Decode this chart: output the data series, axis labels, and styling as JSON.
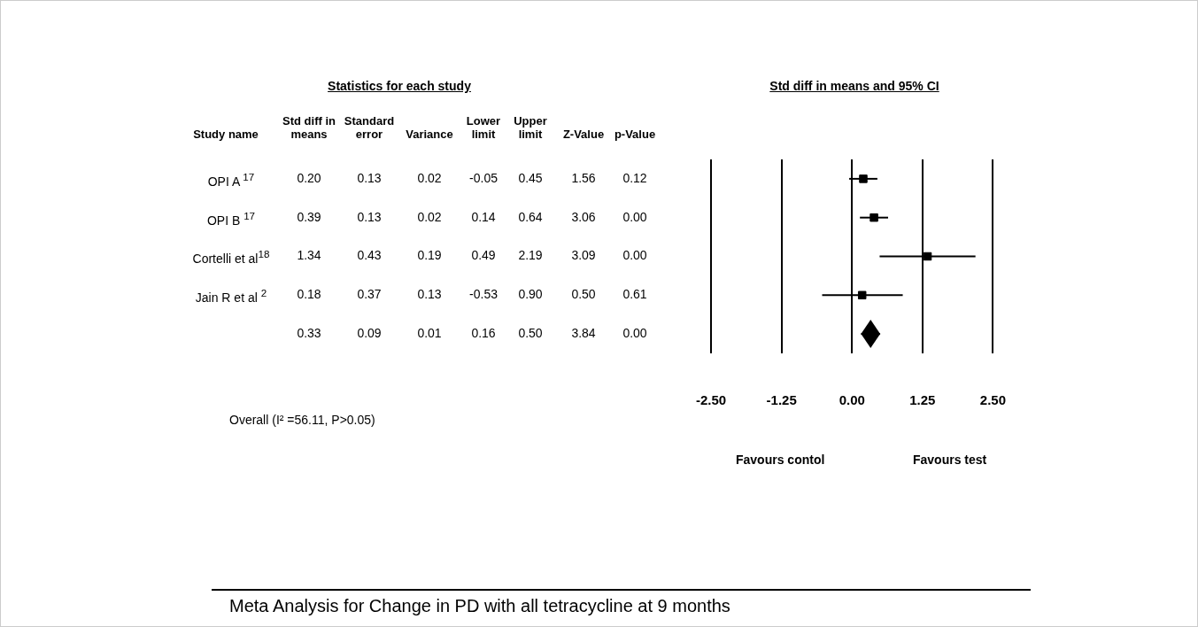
{
  "chart_data": [
    {
      "type": "heatmap",
      "title": "Statistics for each study",
      "ylabel": "Study name",
      "categories": [
        "Std diff in means",
        "Standard error",
        "Variance",
        "Lower limit",
        "Upper limit",
        "Z-Value",
        "p-Value"
      ],
      "y_categories": [
        "OPI A $^{17}$",
        "OPI B $^{17}$",
        "Cortelli et al$^{18}$",
        "Jain R et al $^{2}$",
        null
      ],
      "cells": [
        [
          0.2,
          0.13,
          0.02,
          -0.05,
          0.45,
          1.56,
          0.12
        ],
        [
          0.39,
          0.13,
          0.02,
          0.14,
          0.64,
          3.06,
          0.0
        ],
        [
          1.34,
          0.43,
          0.19,
          0.49,
          2.19,
          3.09,
          0.0
        ],
        [
          0.18,
          0.37,
          0.13,
          -0.53,
          0.9,
          0.5,
          0.61
        ],
        [
          0.33,
          0.09,
          0.01,
          0.16,
          0.5,
          3.84,
          0.0
        ]
      ],
      "cell_labels": [
        [
          "0.20",
          "0.13",
          "0.02",
          "-0.05",
          "0.45",
          "1.56",
          "0.12"
        ],
        [
          "0.39",
          "0.13",
          "0.02",
          "0.14",
          "0.64",
          "3.06",
          "0.00"
        ],
        [
          "1.34",
          "0.43",
          "0.19",
          "0.49",
          "2.19",
          "3.09",
          "0.00"
        ],
        [
          "0.18",
          "0.37",
          "0.13",
          "-0.53",
          "0.90",
          "0.50",
          "0.61"
        ],
        [
          "0.33",
          "0.09",
          "0.01",
          "0.16",
          "0.50",
          "3.84",
          "0.00"
        ]
      ],
      "annotations": [
        "Overall (I² =56.11, P>0.05)",
        "Meta Analysis for Change in PD with all tetracycline at 9 months"
      ]
    },
    {
      "type": "scatter",
      "orientation": "horizontal",
      "title": "Std diff in means and 95% CI",
      "categories": [
        null,
        null,
        null,
        null,
        null
      ],
      "series": [
        {
          "color": "#000000",
          "marker": "square",
          "values": [
            0.2,
            0.39,
            1.34,
            0.18,
            null
          ],
          "errors": [
            [
              -0.05,
              0.45
            ],
            [
              0.14,
              0.64
            ],
            [
              0.49,
              2.19
            ],
            [
              -0.53,
              0.9
            ],
            null
          ]
        },
        {
          "color": "#000000",
          "marker": "diamond",
          "values": [
            null,
            null,
            null,
            null,
            0.33
          ],
          "errors": [
            null,
            null,
            null,
            null,
            [
              0.16,
              0.5
            ]
          ]
        }
      ],
      "xlim": [
        -2.5,
        2.5
      ],
      "xticks": [
        {
          "value": -2.5,
          "label": "-2.50"
        },
        {
          "value": -1.25,
          "label": "-1.25"
        },
        {
          "value": 0,
          "label": "0.00"
        },
        {
          "value": 1.25,
          "label": "1.25"
        },
        {
          "value": 2.5,
          "label": "2.50"
        }
      ],
      "grid": "x",
      "legend": false,
      "annotations": [
        "Favours contol",
        "Favours test"
      ]
    }
  ]
}
